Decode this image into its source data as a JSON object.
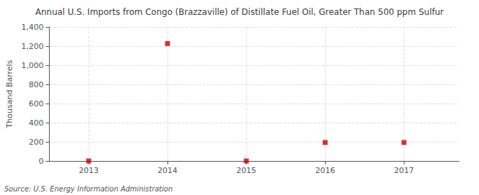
{
  "chart_data": {
    "type": "scatter",
    "title": "Annual U.S. Imports from Congo (Brazzaville) of Distillate Fuel Oil, Greater Than 500 ppm Sulfur",
    "ylabel": "Thousand Barrels",
    "source": "Source: U.S. Energy Information Administration",
    "x": [
      2013,
      2014,
      2015,
      2016,
      2017
    ],
    "values": [
      0,
      1227,
      0,
      193,
      193
    ],
    "color": "#cc0000",
    "marker": "square",
    "xlim": [
      2012.5,
      2017.7
    ],
    "xticks": [
      2013,
      2014,
      2015,
      2016,
      2017
    ],
    "ylim": [
      0,
      1400
    ],
    "yticks": [
      0,
      200,
      400,
      600,
      800,
      {
        "value": 1000,
        "label": "1,000"
      },
      {
        "value": 1200,
        "label": "1,200"
      },
      {
        "value": 1400,
        "label": "1,400"
      }
    ],
    "grid": true
  }
}
